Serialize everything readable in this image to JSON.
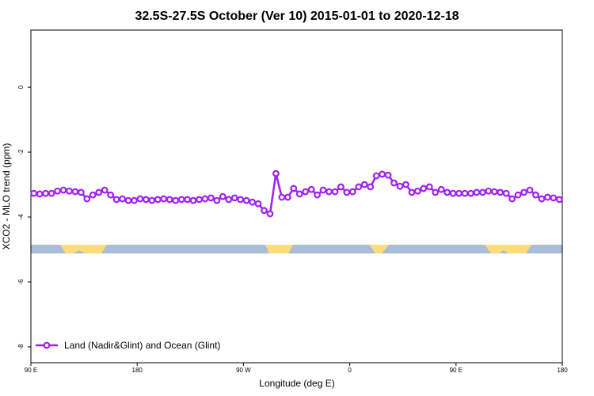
{
  "chart_data": {
    "type": "line",
    "title": "32.5S-27.5S October (Ver 10)   2015-01-01 to 2020-12-18",
    "x_label": "Longitude (deg E)",
    "y_label": "XCO2 - MLO trend (ppm)",
    "xlim": [
      90,
      540
    ],
    "ylim": [
      -8.49,
      1.76
    ],
    "xticks": [
      {
        "value": 90,
        "label": "90 E"
      },
      180,
      {
        "value": 270,
        "label": "90 W"
      },
      {
        "value": 360,
        "label": "0"
      },
      {
        "value": 450,
        "label": "90 E"
      },
      {
        "value": 540,
        "label": "180"
      }
    ],
    "yticks": [
      -8,
      -6,
      -4,
      -2,
      0
    ],
    "legend": "bottom-left",
    "x": [
      92.5,
      97.5,
      102.5,
      107.5,
      112.5,
      117.5,
      122.5,
      127.5,
      132.5,
      137.5,
      142.5,
      147.5,
      152.5,
      157.5,
      162.5,
      167.5,
      172.5,
      177.5,
      182.5,
      187.5,
      192.5,
      197.5,
      202.5,
      207.5,
      212.5,
      217.5,
      222.5,
      227.5,
      232.5,
      237.5,
      242.5,
      247.5,
      252.5,
      257.5,
      262.5,
      267.5,
      272.5,
      277.5,
      282.5,
      287.5,
      292.5,
      297.5,
      302.5,
      307.5,
      312.5,
      317.5,
      322.5,
      327.5,
      332.5,
      337.5,
      342.5,
      347.5,
      352.5,
      357.5,
      362.5,
      367.5,
      372.5,
      377.5,
      382.5,
      387.5,
      392.5,
      397.5,
      402.5,
      407.5,
      412.5,
      417.5,
      422.5,
      427.5,
      432.5,
      437.5,
      442.5,
      447.5,
      452.5,
      457.5,
      462.5,
      467.5,
      472.5,
      477.5,
      482.5,
      487.5,
      492.5,
      497.5,
      502.5,
      507.5,
      512.5,
      517.5,
      522.5,
      527.5,
      532.5,
      537.5
    ],
    "series": [
      {
        "name": "Land (Nadir&Glint) and Ocean (Glint)",
        "color": "#a020f0",
        "values": [
          -3.27,
          -3.29,
          -3.27,
          -3.27,
          -3.2,
          -3.17,
          -3.2,
          -3.22,
          -3.24,
          -3.44,
          -3.32,
          -3.24,
          -3.17,
          -3.32,
          -3.46,
          -3.44,
          -3.49,
          -3.49,
          -3.44,
          -3.46,
          -3.49,
          -3.46,
          -3.44,
          -3.46,
          -3.49,
          -3.46,
          -3.46,
          -3.49,
          -3.46,
          -3.44,
          -3.41,
          -3.49,
          -3.37,
          -3.46,
          -3.41,
          -3.46,
          -3.49,
          -3.54,
          -3.59,
          -3.8,
          -3.9,
          -2.66,
          -3.39,
          -3.39,
          -3.12,
          -3.29,
          -3.22,
          -3.15,
          -3.32,
          -3.17,
          -3.22,
          -3.22,
          -3.07,
          -3.24,
          -3.22,
          -3.07,
          -3.0,
          -3.07,
          -2.73,
          -2.68,
          -2.71,
          -2.95,
          -3.05,
          -3.0,
          -3.24,
          -3.2,
          -3.12,
          -3.07,
          -3.24,
          -3.15,
          -3.24,
          -3.27,
          -3.27,
          -3.27,
          -3.27,
          -3.24,
          -3.24,
          -3.2,
          -3.22,
          -3.24,
          -3.27,
          -3.44,
          -3.32,
          -3.24,
          -3.17,
          -3.32,
          -3.44,
          -3.39,
          -3.41,
          -3.46
        ]
      }
    ]
  }
}
